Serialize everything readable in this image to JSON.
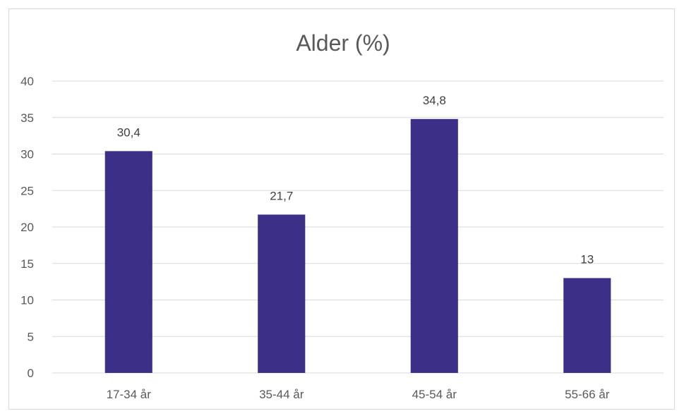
{
  "chart_data": {
    "type": "bar",
    "title": "Alder (%)",
    "xlabel": "",
    "ylabel": "",
    "categories": [
      "17-34 år",
      "35-44 år",
      "45-54 år",
      "55-66 år"
    ],
    "values": [
      30.4,
      21.7,
      34.8,
      13
    ],
    "value_labels": [
      "30,4",
      "21,7",
      "34,8",
      "13"
    ],
    "ylim": [
      0,
      40
    ],
    "yticks": [
      0,
      5,
      10,
      15,
      20,
      25,
      30,
      35,
      40
    ],
    "grid": true,
    "legend": "none",
    "colors": {
      "bar": "#3b2f88",
      "grid": "#d9d9d9",
      "text": "#595959"
    }
  }
}
